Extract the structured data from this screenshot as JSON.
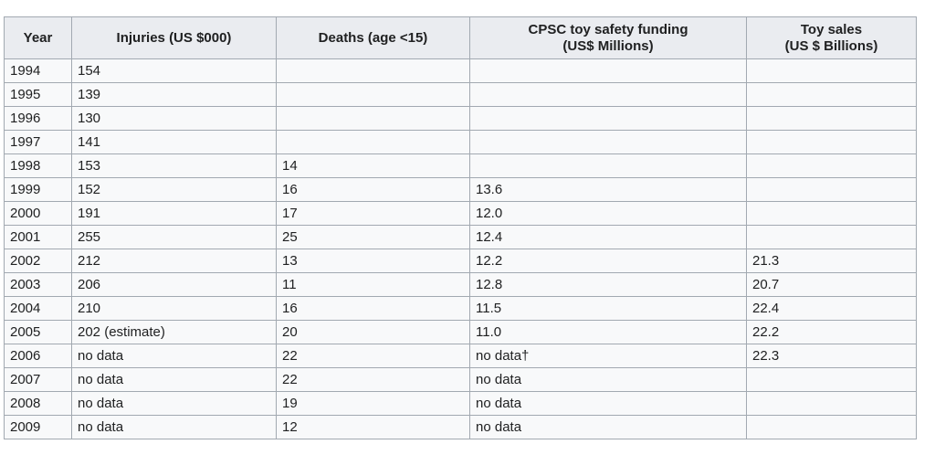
{
  "table": {
    "headers": [
      [
        "Year"
      ],
      [
        "Injuries (US $000)"
      ],
      [
        "Deaths (age <15)"
      ],
      [
        "CPSC toy safety funding",
        "(US$ Millions)"
      ],
      [
        "Toy sales",
        "(US $ Billions)"
      ]
    ],
    "rows": [
      [
        "1994",
        "154",
        "",
        "",
        ""
      ],
      [
        "1995",
        "139",
        "",
        "",
        ""
      ],
      [
        "1996",
        "130",
        "",
        "",
        ""
      ],
      [
        "1997",
        "141",
        "",
        "",
        ""
      ],
      [
        "1998",
        "153",
        "14",
        "",
        ""
      ],
      [
        "1999",
        "152",
        "16",
        "13.6",
        ""
      ],
      [
        "2000",
        "191",
        "17",
        "12.0",
        ""
      ],
      [
        "2001",
        "255",
        "25",
        "12.4",
        ""
      ],
      [
        "2002",
        "212",
        "13",
        "12.2",
        "21.3"
      ],
      [
        "2003",
        "206",
        "11",
        "12.8",
        "20.7"
      ],
      [
        "2004",
        "210",
        "16",
        "11.5",
        "22.4"
      ],
      [
        "2005",
        "202 (estimate)",
        "20",
        "11.0",
        "22.2"
      ],
      [
        "2006",
        "no data",
        "22",
        "no data†",
        "22.3"
      ],
      [
        "2007",
        "no data",
        "22",
        "no data",
        ""
      ],
      [
        "2008",
        "no data",
        "19",
        "no data",
        ""
      ],
      [
        "2009",
        "no data",
        "12",
        "no data",
        ""
      ]
    ]
  }
}
